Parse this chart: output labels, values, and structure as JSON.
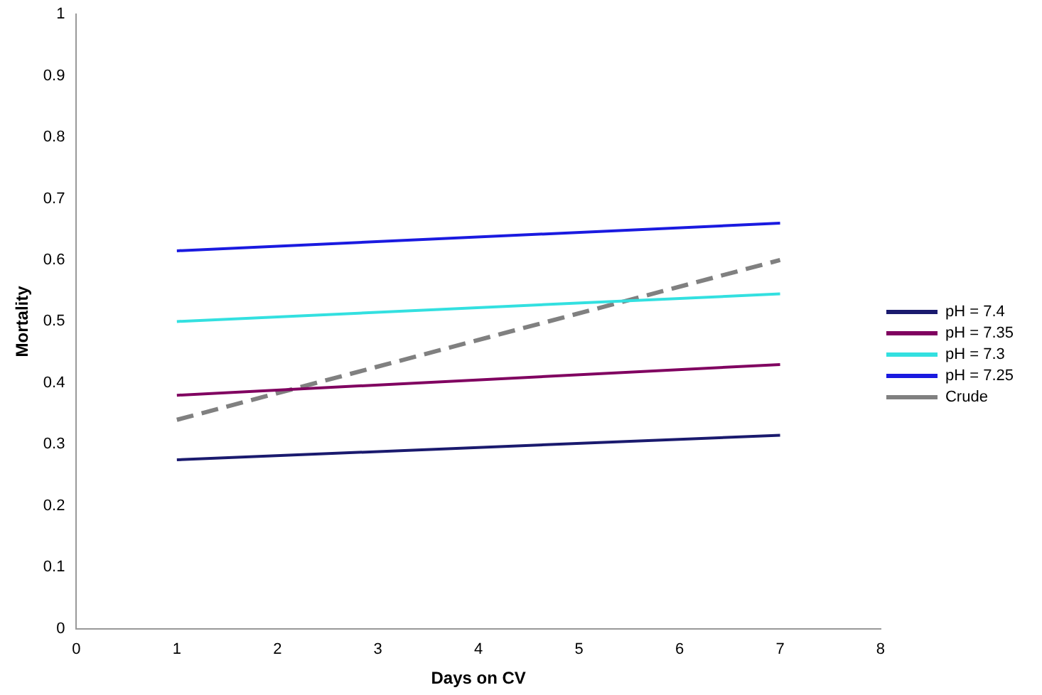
{
  "chart_data": {
    "type": "line",
    "xlabel": "Days on CV",
    "ylabel": "Mortality",
    "x": [
      1,
      7
    ],
    "series": [
      {
        "name": "pH = 7.4",
        "color": "#1a1a6e",
        "values": [
          0.275,
          0.315
        ],
        "line_style": "solid"
      },
      {
        "name": "pH = 7.35",
        "color": "#800060",
        "values": [
          0.38,
          0.43
        ],
        "line_style": "solid"
      },
      {
        "name": "pH = 7.3",
        "color": "#33e0e0",
        "values": [
          0.5,
          0.545
        ],
        "line_style": "solid"
      },
      {
        "name": "pH = 7.25",
        "color": "#1a1ae0",
        "values": [
          0.615,
          0.66
        ],
        "line_style": "solid"
      },
      {
        "name": "Crude",
        "color": "#808080",
        "values": [
          0.34,
          0.6
        ],
        "line_style": "dashed"
      }
    ],
    "xlim": [
      0,
      8
    ],
    "xticks": [
      0,
      1,
      2,
      3,
      4,
      5,
      6,
      7,
      8
    ],
    "ylim": [
      0,
      1
    ],
    "yticks": [
      0,
      0.1,
      0.2,
      0.3,
      0.4,
      0.5,
      0.6,
      0.7,
      0.8,
      0.9,
      1
    ],
    "grid": false,
    "legend": "right",
    "marker": "none"
  }
}
